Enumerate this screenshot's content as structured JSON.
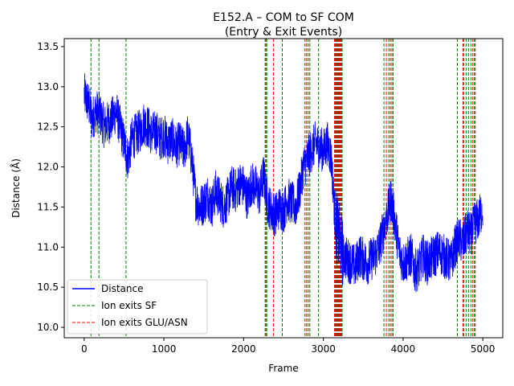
{
  "chart_data": {
    "type": "line",
    "title": "E152.A – COM to SF COM",
    "subtitle": "(Entry & Exit Events)",
    "xlabel": "Frame",
    "ylabel": "Distance (Å)",
    "xlim": [
      -250,
      5250
    ],
    "ylim": [
      9.87,
      13.6
    ],
    "xticks": [
      0,
      1000,
      2000,
      3000,
      4000,
      5000
    ],
    "yticks": [
      10.0,
      10.5,
      11.0,
      11.5,
      12.0,
      12.5,
      13.0,
      13.5
    ],
    "xtick_labels": [
      "0",
      "1000",
      "2000",
      "3000",
      "4000",
      "5000"
    ],
    "ytick_labels": [
      "10.0",
      "10.5",
      "11.0",
      "11.5",
      "12.0",
      "12.5",
      "13.0",
      "13.5"
    ],
    "grid": false,
    "legend_position": "lower-left",
    "series": [
      {
        "name": "Distance",
        "color": "#0000ff",
        "x": [
          0,
          50,
          100,
          150,
          200,
          250,
          300,
          350,
          400,
          450,
          500,
          550,
          600,
          650,
          700,
          750,
          800,
          850,
          900,
          950,
          1000,
          1050,
          1100,
          1150,
          1200,
          1250,
          1300,
          1350,
          1400,
          1450,
          1500,
          1550,
          1600,
          1650,
          1700,
          1750,
          1800,
          1850,
          1900,
          1950,
          2000,
          2050,
          2100,
          2150,
          2200,
          2250,
          2300,
          2350,
          2400,
          2450,
          2500,
          2550,
          2600,
          2650,
          2700,
          2750,
          2800,
          2850,
          2900,
          2950,
          3000,
          3050,
          3100,
          3150,
          3200,
          3250,
          3300,
          3350,
          3400,
          3450,
          3500,
          3550,
          3600,
          3650,
          3700,
          3750,
          3800,
          3850,
          3900,
          3950,
          4000,
          4050,
          4100,
          4150,
          4200,
          4250,
          4300,
          4350,
          4400,
          4450,
          4500,
          4550,
          4600,
          4650,
          4700,
          4750,
          4800,
          4850,
          4900,
          4950,
          5000
        ],
        "y": [
          12.9,
          12.8,
          12.6,
          12.7,
          12.65,
          12.5,
          12.55,
          12.6,
          12.7,
          12.5,
          12.3,
          12.1,
          12.35,
          12.4,
          12.45,
          12.55,
          12.5,
          12.4,
          12.45,
          12.35,
          12.4,
          12.3,
          12.35,
          12.25,
          12.3,
          12.2,
          12.4,
          12.1,
          11.6,
          11.5,
          11.55,
          11.65,
          11.5,
          11.7,
          11.6,
          11.5,
          11.6,
          11.75,
          11.7,
          11.8,
          11.75,
          11.6,
          11.8,
          11.75,
          11.65,
          11.9,
          11.55,
          11.45,
          11.4,
          11.5,
          11.45,
          11.6,
          11.55,
          11.5,
          11.7,
          12.0,
          12.1,
          12.2,
          12.3,
          12.25,
          12.2,
          12.3,
          12.1,
          11.3,
          11.1,
          10.9,
          10.85,
          10.8,
          10.75,
          10.9,
          10.85,
          10.8,
          10.85,
          10.9,
          11.0,
          11.2,
          11.4,
          11.6,
          11.3,
          10.95,
          10.8,
          10.85,
          10.9,
          10.7,
          10.75,
          10.9,
          10.8,
          10.85,
          10.9,
          10.95,
          10.9,
          10.85,
          10.8,
          11.0,
          11.1,
          11.05,
          11.2,
          11.15,
          11.3,
          11.35,
          11.5
        ]
      }
    ],
    "event_lines": [
      {
        "name": "Ion exits SF",
        "color": "#008000",
        "style": "dashed",
        "x": [
          85,
          185,
          525,
          2270,
          2290,
          2485,
          2790,
          2830,
          2940,
          3145,
          3160,
          3175,
          3190,
          3205,
          3220,
          3235,
          3760,
          3820,
          3860,
          4680,
          4760,
          4790,
          4820,
          4850,
          4895
        ]
      },
      {
        "name": "Ion exits GLU/ASN",
        "color": "#ff0000",
        "style": "dashed",
        "x": [
          2280,
          2375,
          2770,
          2810,
          3140,
          3155,
          3170,
          3185,
          3200,
          3215,
          3230,
          3790,
          3840,
          3875,
          4750,
          4875,
          4905
        ]
      }
    ]
  }
}
